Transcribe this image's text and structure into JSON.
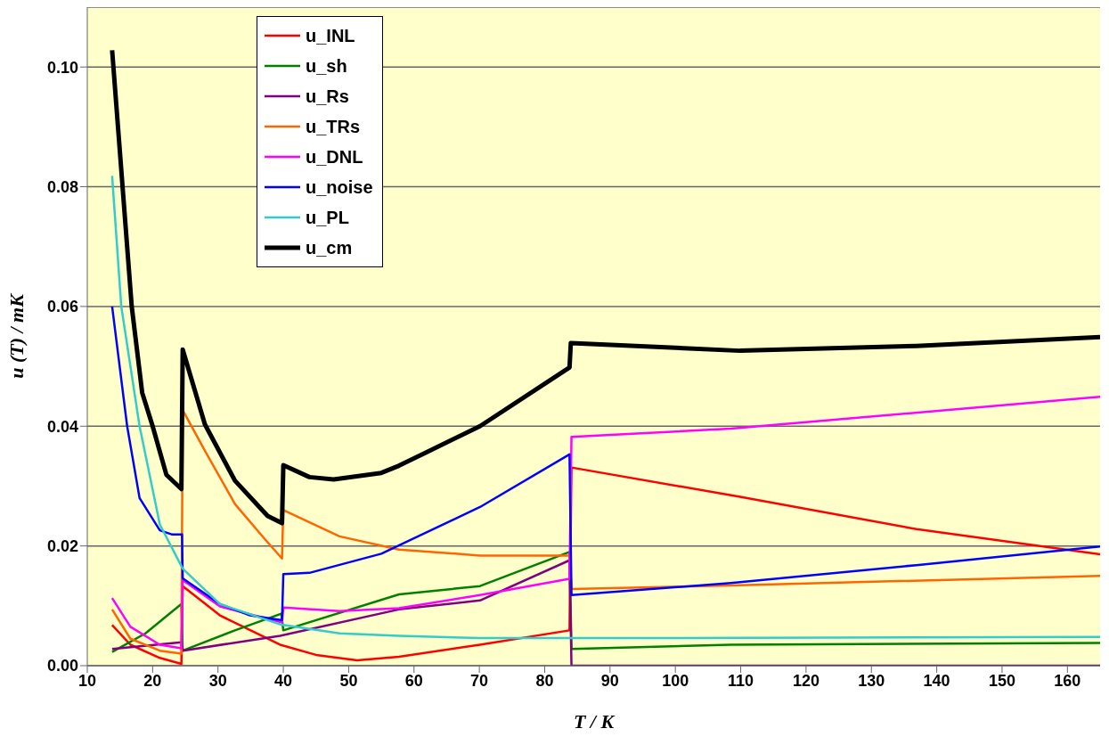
{
  "chart_data": {
    "type": "line",
    "xlabel": "T / K",
    "ylabel": "u (T) / mK",
    "xlim": [
      10,
      165
    ],
    "xticks": [
      10,
      20,
      30,
      40,
      50,
      60,
      70,
      80,
      90,
      100,
      110,
      120,
      130,
      140,
      150,
      160
    ],
    "ylim": [
      0,
      0.11
    ],
    "yticks": [
      {
        "value": 0,
        "label": "0.00"
      },
      {
        "value": 0.02,
        "label": "0.02"
      },
      {
        "value": 0.04,
        "label": "0.04"
      },
      {
        "value": 0.06,
        "label": "0.06"
      },
      {
        "value": 0.08,
        "label": "0.08"
      },
      {
        "value": 0.1,
        "label": "0.10"
      }
    ],
    "grid": "y",
    "legend": "top left",
    "marker": "none",
    "line_style": "solid",
    "series": [
      {
        "name": "u_INL",
        "color": "#ff0000",
        "x": [
          13.8,
          16.6,
          21.1,
          24.4,
          24.6,
          30.3,
          39.5,
          45,
          51.3,
          57.7,
          70.1,
          83.8,
          84.1,
          109.9,
          136.9,
          165
        ],
        "values": [
          0.0068,
          0.0035,
          0.0013,
          0.0003,
          0.0133,
          0.0084,
          0.0035,
          0.0018,
          0.0009,
          0.0015,
          0.0035,
          0.0059,
          0.0331,
          0.0282,
          0.0228,
          0.0186
        ]
      },
      {
        "name": "u_sh",
        "color": "#008000",
        "x": [
          13.8,
          18.9,
          24.4,
          24.6,
          32.6,
          39.7,
          40,
          57.7,
          70.1,
          83.8,
          84.1,
          108.5,
          165
        ],
        "values": [
          0.0023,
          0.0054,
          0.0103,
          0.0025,
          0.0059,
          0.0087,
          0.0059,
          0.0119,
          0.0133,
          0.019,
          0.0028,
          0.0035,
          0.0038
        ]
      },
      {
        "name": "u_Rs",
        "color": "#800080",
        "x": [
          13.8,
          24.4,
          24.6,
          39.5,
          57.7,
          70.1,
          83.8,
          84.1,
          165
        ],
        "values": [
          0.0028,
          0.0039,
          0.0025,
          0.005,
          0.0094,
          0.0109,
          0.0176,
          0,
          0
        ]
      },
      {
        "name": "u_TRs",
        "color": "#ff6600",
        "x": [
          13.8,
          16.6,
          21.1,
          24.4,
          24.6,
          28,
          32.6,
          37.2,
          39.8,
          40,
          48.6,
          57.7,
          70.1,
          83.8,
          84.1,
          108.5,
          165
        ],
        "values": [
          0.0094,
          0.0045,
          0.0025,
          0.002,
          0.0427,
          0.0359,
          0.027,
          0.0211,
          0.0179,
          0.026,
          0.0216,
          0.0194,
          0.0184,
          0.0184,
          0.0128,
          0.0134,
          0.015
        ]
      },
      {
        "name": "u_DNL",
        "color": "#ff00ff",
        "x": [
          13.8,
          16.6,
          21.1,
          24.4,
          24.6,
          30.3,
          39.8,
          40,
          48.6,
          57.7,
          70.1,
          83.8,
          84.1,
          108.5,
          165
        ],
        "values": [
          0.0113,
          0.0065,
          0.0035,
          0.0029,
          0.0143,
          0.0099,
          0.0072,
          0.0097,
          0.0091,
          0.0096,
          0.0118,
          0.0145,
          0.0382,
          0.0396,
          0.0449
        ]
      },
      {
        "name": "u_noise",
        "color": "#0000ff",
        "x": [
          13.8,
          16.1,
          18,
          21.1,
          23,
          24.5,
          24.6,
          30.3,
          34.9,
          39.8,
          40,
          44,
          55,
          70.1,
          83.8,
          84.1,
          108.5,
          136.9,
          165
        ],
        "values": [
          0.06,
          0.04,
          0.028,
          0.0226,
          0.0219,
          0.0219,
          0.0146,
          0.0103,
          0.0084,
          0.0076,
          0.0153,
          0.0155,
          0.0187,
          0.0265,
          0.0353,
          0.0118,
          0.0138,
          0.0168,
          0.0199
        ]
      },
      {
        "name": "u_PL",
        "color": "#33cccc",
        "x": [
          13.8,
          15.2,
          18,
          21.1,
          24.6,
          30.3,
          39.5,
          48.6,
          57.7,
          70,
          100,
          165
        ],
        "values": [
          0.0818,
          0.06,
          0.04,
          0.0236,
          0.0162,
          0.0103,
          0.0069,
          0.0054,
          0.005,
          0.0046,
          0.0046,
          0.0048
        ]
      },
      {
        "name": "u_cm",
        "color": "#000000",
        "x": [
          13.8,
          16.8,
          18.4,
          20,
          22.1,
          24.4,
          24.6,
          28,
          32.6,
          37.6,
          39.8,
          40,
          44,
          47.7,
          55,
          57.7,
          70.1,
          83.8,
          84,
          109.9,
          136.9,
          165
        ],
        "values": [
          0.1028,
          0.06,
          0.0456,
          0.04,
          0.0319,
          0.0295,
          0.0528,
          0.0403,
          0.0309,
          0.025,
          0.0238,
          0.0335,
          0.0315,
          0.0311,
          0.0322,
          0.0334,
          0.04,
          0.0498,
          0.0539,
          0.0526,
          0.0534,
          0.0549
        ]
      }
    ]
  }
}
